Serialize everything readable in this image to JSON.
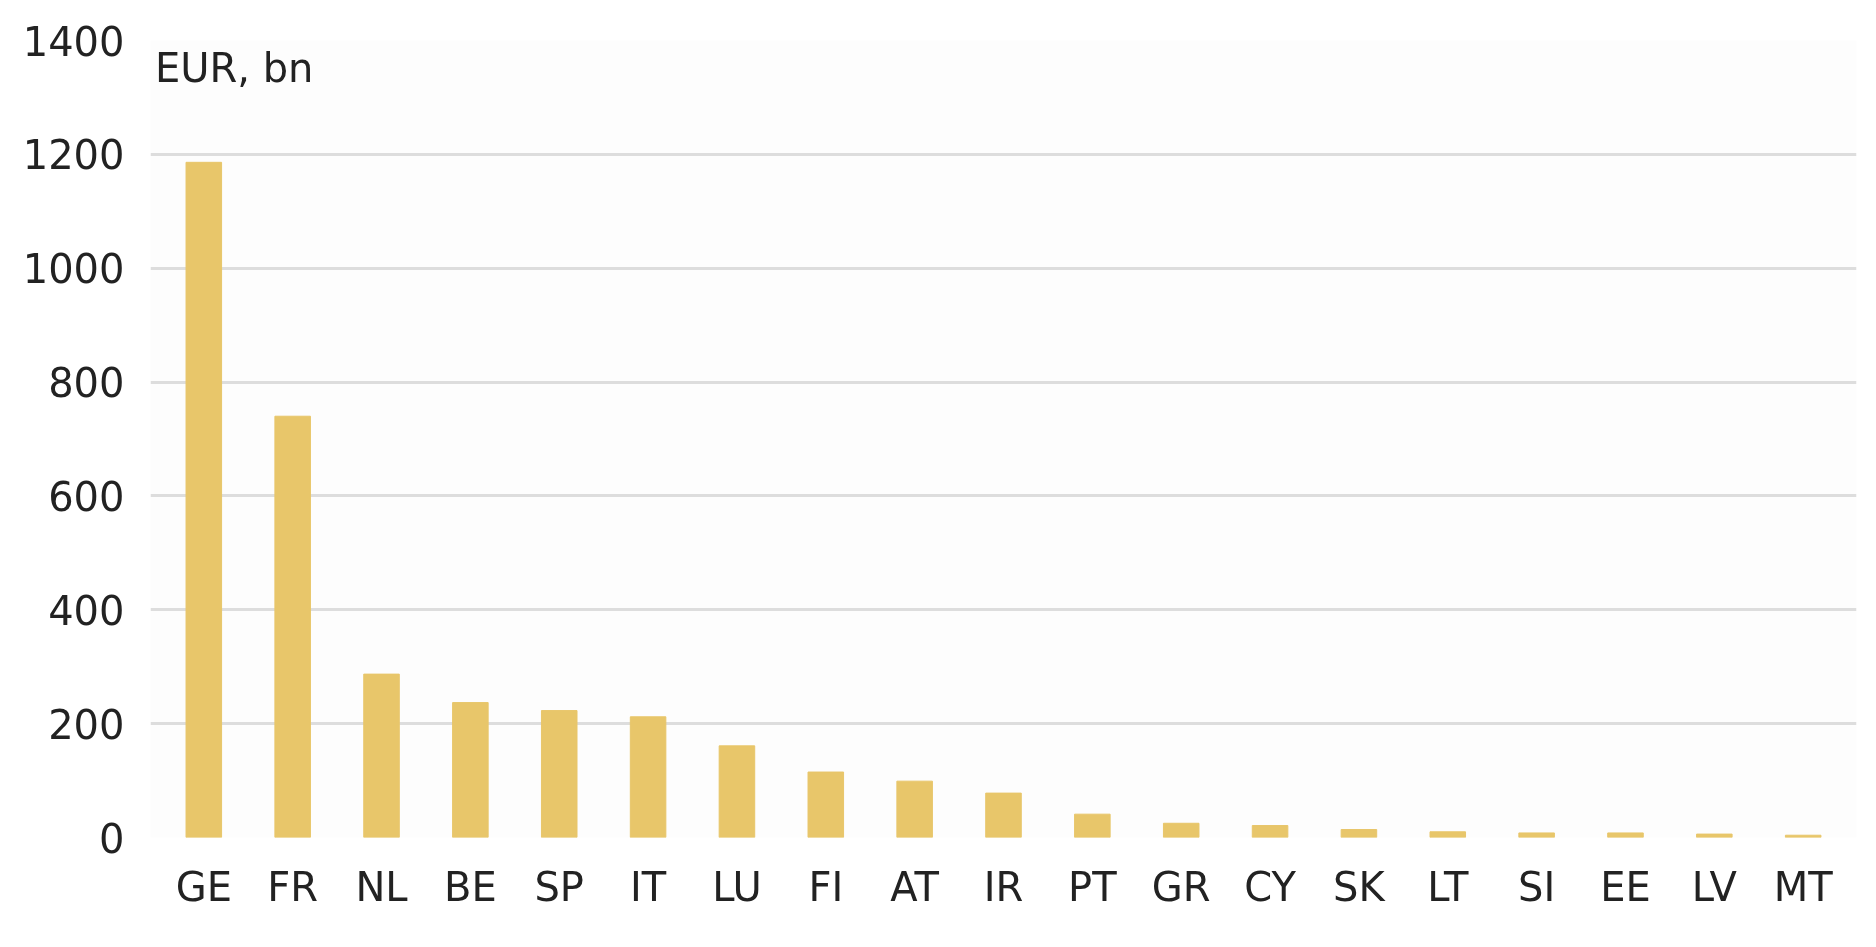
{
  "chart_data": {
    "type": "bar",
    "ylabel": "EUR, bn",
    "categories": [
      "GE",
      "FR",
      "NL",
      "BE",
      "SP",
      "IT",
      "LU",
      "FI",
      "AT",
      "IR",
      "PT",
      "GR",
      "CY",
      "SK",
      "LT",
      "SI",
      "EE",
      "LV",
      "MT"
    ],
    "values": [
      1186,
      740,
      287,
      237,
      223,
      212,
      161,
      115,
      99,
      78,
      41,
      25,
      21,
      14,
      10,
      8,
      8,
      6,
      4
    ],
    "color": "#e8c66a",
    "ylim": [
      0,
      1400
    ],
    "yticks": [
      0,
      200,
      400,
      600,
      800,
      1000,
      1200,
      1400
    ],
    "grid": "y"
  }
}
